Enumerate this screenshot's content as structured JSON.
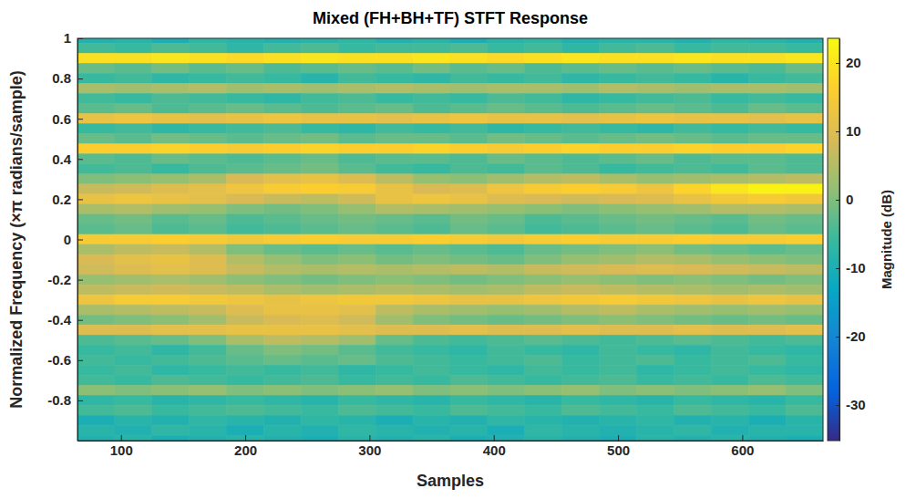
{
  "chart_data": {
    "type": "heatmap",
    "title": "Mixed (FH+BH+TF) STFT Response",
    "x_label": "Samples",
    "y_label": "Normalized Frequency (×π radians/sample)",
    "xlim": [
      65,
      665
    ],
    "xticks": [
      100,
      200,
      300,
      400,
      500,
      600
    ],
    "ylim": [
      -1,
      1
    ],
    "yticks": [
      -0.8,
      -0.6,
      -0.4,
      -0.2,
      0,
      0.2,
      0.4,
      0.6,
      0.8,
      1
    ],
    "grid": false,
    "x": [
      80,
      110,
      140,
      170,
      200,
      230,
      260,
      290,
      320,
      350,
      380,
      410,
      440,
      470,
      500,
      530,
      560,
      590,
      620,
      650
    ],
    "y": [
      1,
      0.95,
      0.9,
      0.85,
      0.8,
      0.75,
      0.7,
      0.65,
      0.6,
      0.55,
      0.5,
      0.45,
      0.4,
      0.35,
      0.3,
      0.25,
      0.2,
      0.15,
      0.1,
      0.05,
      0,
      -0.05,
      -0.1,
      -0.15,
      -0.2,
      -0.25,
      -0.3,
      -0.35,
      -0.4,
      -0.45,
      -0.5,
      -0.55,
      -0.6,
      -0.65,
      -0.7,
      -0.75,
      -0.8,
      -0.85,
      -0.9,
      -0.95,
      -1
    ],
    "values": [
      [
        -9,
        -8,
        -10,
        -7,
        -8,
        -9,
        -8,
        -7,
        -9,
        -8,
        -10,
        -8,
        -7,
        -9,
        -8,
        -8,
        -9,
        -7,
        -8,
        -9
      ],
      [
        -5,
        -6,
        -4,
        -5,
        -7,
        -5,
        -4,
        -6,
        -5,
        -5,
        -4,
        -6,
        -5,
        -7,
        -5,
        -4,
        -6,
        -5,
        -5,
        -6
      ],
      [
        19,
        19,
        20,
        19,
        18,
        19,
        20,
        19,
        19,
        20,
        19,
        18,
        19,
        20,
        19,
        19,
        20,
        19,
        19,
        20
      ],
      [
        -2,
        -3,
        -1,
        -3,
        -2,
        -4,
        -3,
        -2,
        -3,
        -1,
        -3,
        -2,
        -4,
        -3,
        -2,
        -3,
        -2,
        -3,
        -4,
        -2
      ],
      [
        -6,
        -5,
        -7,
        -6,
        -5,
        -6,
        -8,
        -5,
        -6,
        -7,
        -5,
        -6,
        -5,
        -7,
        -6,
        -5,
        -6,
        -8,
        -6,
        -5
      ],
      [
        4,
        3,
        4,
        5,
        3,
        4,
        3,
        4,
        5,
        4,
        3,
        4,
        4,
        3,
        5,
        4,
        3,
        4,
        4,
        3
      ],
      [
        -5,
        -6,
        -4,
        -5,
        -6,
        -7,
        -5,
        -4,
        -6,
        -5,
        -6,
        -4,
        -5,
        -7,
        -6,
        -5,
        -4,
        -6,
        -5,
        -6
      ],
      [
        -3,
        -2,
        -4,
        -3,
        -2,
        -3,
        -4,
        -3,
        -2,
        -4,
        -3,
        -2,
        -3,
        -4,
        -3,
        -2,
        -3,
        -4,
        -2,
        -3
      ],
      [
        12,
        13,
        12,
        11,
        12,
        13,
        12,
        12,
        11,
        12,
        13,
        12,
        12,
        11,
        12,
        13,
        12,
        12,
        11,
        12
      ],
      [
        -6,
        -5,
        -7,
        -6,
        -5,
        -4,
        -6,
        -7,
        -5,
        -6,
        -5,
        -7,
        -6,
        -5,
        -6,
        -7,
        -5,
        -6,
        -5,
        -6
      ],
      [
        -2,
        -3,
        -1,
        -2,
        -3,
        -2,
        -1,
        -3,
        -2,
        -2,
        -3,
        -1,
        -2,
        -3,
        -2,
        -1,
        -2,
        -3,
        -2,
        -2
      ],
      [
        16,
        16,
        17,
        16,
        15,
        16,
        17,
        16,
        16,
        17,
        16,
        15,
        16,
        17,
        16,
        16,
        17,
        16,
        16,
        17
      ],
      [
        -3,
        -4,
        -2,
        -3,
        -4,
        -3,
        -2,
        -4,
        -3,
        -3,
        -4,
        -2,
        -3,
        -4,
        -3,
        -2,
        -4,
        -3,
        -3,
        -4
      ],
      [
        -5,
        -4,
        -6,
        -4,
        -3,
        -2,
        -1,
        -3,
        -5,
        -6,
        -4,
        -5,
        -3,
        -4,
        -6,
        -5,
        -4,
        -5,
        -3,
        -4
      ],
      [
        0,
        1,
        2,
        4,
        9,
        11,
        12,
        10,
        6,
        2,
        1,
        3,
        5,
        6,
        4,
        2,
        3,
        4,
        5,
        6
      ],
      [
        7,
        8,
        10,
        11,
        13,
        15,
        16,
        15,
        12,
        9,
        10,
        13,
        15,
        16,
        15,
        13,
        17,
        20,
        22,
        22
      ],
      [
        12,
        13,
        12,
        11,
        9,
        7,
        6,
        8,
        12,
        13,
        12,
        10,
        9,
        8,
        9,
        10,
        12,
        14,
        15,
        14
      ],
      [
        4,
        5,
        3,
        2,
        0,
        -1,
        0,
        2,
        5,
        4,
        3,
        2,
        1,
        0,
        1,
        2,
        3,
        5,
        5,
        4
      ],
      [
        -2,
        -1,
        -3,
        -2,
        -4,
        -3,
        -2,
        -1,
        -2,
        -3,
        -1,
        -2,
        -4,
        -3,
        -2,
        -1,
        -2,
        -3,
        -1,
        -2
      ],
      [
        -3,
        -2,
        -4,
        -3,
        -5,
        -4,
        -3,
        -2,
        -3,
        -4,
        -2,
        -3,
        -5,
        -4,
        -3,
        -2,
        -3,
        -4,
        -2,
        -3
      ],
      [
        15,
        15,
        16,
        15,
        14,
        15,
        16,
        15,
        15,
        16,
        15,
        14,
        15,
        16,
        15,
        15,
        16,
        15,
        15,
        16
      ],
      [
        4,
        6,
        7,
        5,
        0,
        -2,
        -3,
        -2,
        -3,
        -2,
        -3,
        -4,
        -2,
        -1,
        0,
        1,
        -1,
        -2,
        -3,
        -2
      ],
      [
        9,
        11,
        12,
        10,
        5,
        2,
        0,
        1,
        -1,
        0,
        -1,
        -2,
        0,
        2,
        3,
        5,
        4,
        2,
        1,
        0
      ],
      [
        8,
        10,
        11,
        10,
        7,
        5,
        4,
        5,
        4,
        5,
        6,
        5,
        7,
        8,
        9,
        10,
        9,
        8,
        7,
        6
      ],
      [
        2,
        3,
        4,
        3,
        1,
        0,
        -1,
        0,
        1,
        0,
        -1,
        0,
        1,
        2,
        1,
        0,
        1,
        0,
        -1,
        0
      ],
      [
        6,
        7,
        8,
        7,
        6,
        4,
        3,
        4,
        5,
        4,
        3,
        4,
        6,
        7,
        6,
        5,
        4,
        3,
        4,
        3
      ],
      [
        13,
        15,
        15,
        14,
        13,
        12,
        13,
        14,
        14,
        13,
        12,
        12,
        13,
        14,
        15,
        14,
        13,
        12,
        13,
        12
      ],
      [
        4,
        5,
        6,
        7,
        10,
        12,
        12,
        11,
        6,
        4,
        3,
        2,
        3,
        5,
        6,
        4,
        3,
        2,
        3,
        2
      ],
      [
        -1,
        0,
        1,
        3,
        7,
        9,
        10,
        8,
        3,
        0,
        -1,
        -2,
        -1,
        0,
        1,
        0,
        -1,
        -2,
        -1,
        -2
      ],
      [
        10,
        10,
        11,
        11,
        12,
        12,
        12,
        11,
        10,
        10,
        11,
        10,
        10,
        11,
        10,
        10,
        11,
        10,
        10,
        11
      ],
      [
        -4,
        -3,
        -2,
        0,
        4,
        6,
        5,
        3,
        -2,
        -4,
        -5,
        -4,
        -3,
        -4,
        -5,
        -4,
        -3,
        -4,
        -5,
        -4
      ],
      [
        -6,
        -5,
        -7,
        -5,
        -2,
        0,
        -1,
        -3,
        -5,
        -6,
        -7,
        -5,
        -6,
        -7,
        -5,
        -6,
        -7,
        -5,
        -6,
        -7
      ],
      [
        -5,
        -6,
        -5,
        -4,
        -3,
        -2,
        -3,
        -2,
        -4,
        -5,
        -6,
        -5,
        -4,
        -6,
        -5,
        -4,
        -6,
        -5,
        -4,
        -6
      ],
      [
        -6,
        -5,
        -7,
        -6,
        -5,
        -6,
        -5,
        -7,
        -6,
        -5,
        -6,
        -7,
        -5,
        -6,
        -5,
        -7,
        -6,
        -5,
        -6,
        -7
      ],
      [
        -5,
        -6,
        -4,
        -5,
        -6,
        -5,
        -4,
        -6,
        -5,
        -6,
        -4,
        -5,
        -6,
        -5,
        -4,
        -6,
        -5,
        -6,
        -4,
        -5
      ],
      [
        1,
        0,
        1,
        2,
        0,
        1,
        0,
        1,
        2,
        0,
        1,
        0,
        1,
        2,
        0,
        1,
        0,
        1,
        2,
        0
      ],
      [
        -7,
        -6,
        -8,
        -7,
        -6,
        -7,
        -8,
        -6,
        -7,
        -8,
        -6,
        -7,
        -8,
        -6,
        -7,
        -8,
        -6,
        -7,
        -8,
        -6
      ],
      [
        -5,
        -4,
        -6,
        -5,
        -4,
        -5,
        -6,
        -4,
        -5,
        -6,
        -4,
        -5,
        -6,
        -4,
        -5,
        -6,
        -4,
        -5,
        -6,
        -4
      ],
      [
        -10,
        -8,
        -9,
        -7,
        -8,
        -9,
        -7,
        -8,
        -10,
        -8,
        -9,
        -7,
        -8,
        -9,
        -8,
        -7,
        -9,
        -8,
        -10,
        -8
      ],
      [
        -8,
        -9,
        -7,
        -8,
        -10,
        -8,
        -9,
        -7,
        -8,
        -9,
        -8,
        -10,
        -7,
        -8,
        -9,
        -8,
        -7,
        -9,
        -8,
        -8
      ],
      [
        -9,
        -8,
        -10,
        -9,
        -8,
        -9,
        -10,
        -8,
        -9,
        -8,
        -10,
        -9,
        -8,
        -9,
        -10,
        -8,
        -9,
        -8,
        -9,
        -10
      ]
    ],
    "colorbar": {
      "label": "Magnitude (dB)",
      "lim": [
        -35.2,
        23.6
      ],
      "ticks": [
        -30,
        -20,
        -10,
        0,
        10,
        20
      ]
    }
  }
}
